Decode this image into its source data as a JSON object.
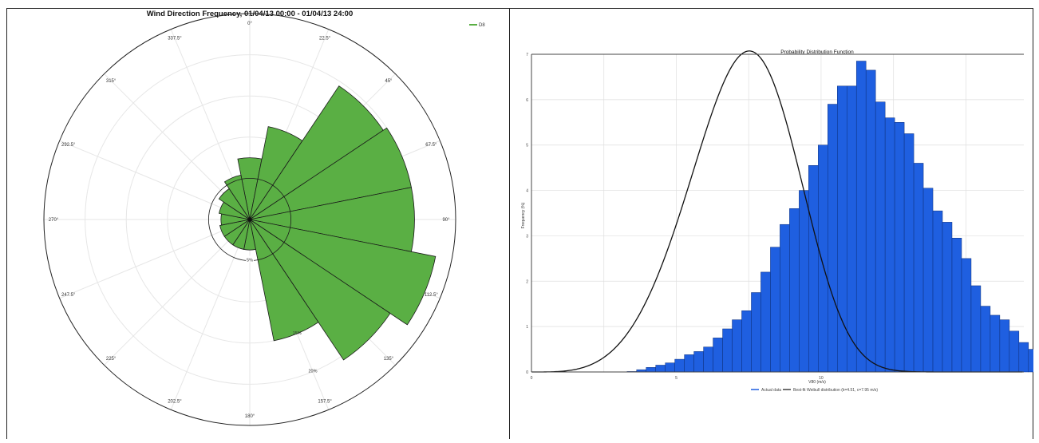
{
  "chart_data": [
    {
      "type": "polar-bar",
      "title": "Wind Direction Frequency, 01/04/13 00:00 - 01/04/13 24:00",
      "legend": [
        {
          "name": "D8",
          "color": "#5aaf44"
        }
      ],
      "legend_placement": "top-right",
      "angle_labels": [
        "0°",
        "22.5°",
        "45°",
        "67.5°",
        "90°",
        "112.5°",
        "135°",
        "157.5°",
        "180°",
        "202.5°",
        "225°",
        "247.5°",
        "270°",
        "292.5°",
        "315°",
        "337.5°"
      ],
      "ring_labels": [
        {
          "direction_deg": 180,
          "text": "5%"
        },
        {
          "direction_deg": 157.5,
          "text": "15%"
        },
        {
          "direction_deg": 157.5,
          "text": "20%"
        }
      ],
      "rmax": 25,
      "sectors": [
        {
          "direction_deg": 0,
          "value": 7.5
        },
        {
          "direction_deg": 22.5,
          "value": 11.5
        },
        {
          "direction_deg": 45,
          "value": 19.5
        },
        {
          "direction_deg": 67.5,
          "value": 20
        },
        {
          "direction_deg": 90,
          "value": 20
        },
        {
          "direction_deg": 112.5,
          "value": 23
        },
        {
          "direction_deg": 135,
          "value": 20.5
        },
        {
          "direction_deg": 157.5,
          "value": 15
        },
        {
          "direction_deg": 180,
          "value": 3.7
        },
        {
          "direction_deg": 202.5,
          "value": 3.7
        },
        {
          "direction_deg": 225,
          "value": 3.7
        },
        {
          "direction_deg": 247.5,
          "value": 3.7
        },
        {
          "direction_deg": 270,
          "value": 3.5
        },
        {
          "direction_deg": 292.5,
          "value": 3.8
        },
        {
          "direction_deg": 315,
          "value": 4.5
        },
        {
          "direction_deg": 337.5,
          "value": 5.5
        }
      ],
      "colors": {
        "fill": "#5aaf44",
        "stroke": "#1a1a1a",
        "grid": "#e6e6e6"
      }
    },
    {
      "type": "histogram",
      "title": "Probability Distribution Function",
      "xlabel": "V80 (m/s)",
      "ylabel": "Frequency (%)",
      "xlim": [
        0,
        17
      ],
      "ylim": [
        0,
        7
      ],
      "x_ticks": [
        "0",
        "5",
        "10"
      ],
      "x_tick_values": [
        0,
        5,
        10
      ],
      "y_ticks": [
        "0",
        "1",
        "2",
        "3",
        "4",
        "5",
        "6",
        "7"
      ],
      "bin_start": 0,
      "bin_width": 0.33,
      "values": [
        0.0,
        0.0,
        0.0,
        0.0,
        0.0,
        0.0,
        0.0,
        0.0,
        0.0,
        0.0,
        0.01,
        0.05,
        0.1,
        0.15,
        0.2,
        0.28,
        0.38,
        0.45,
        0.55,
        0.75,
        0.95,
        1.15,
        1.35,
        1.75,
        2.2,
        2.75,
        3.25,
        3.6,
        4.0,
        4.55,
        5.0,
        5.9,
        6.3,
        6.3,
        6.85,
        6.65,
        5.95,
        5.6,
        5.5,
        5.25,
        4.6,
        4.05,
        3.55,
        3.3,
        2.95,
        2.5,
        1.9,
        1.45,
        1.25,
        1.15,
        0.9,
        0.65,
        0.5,
        0.35,
        0.3,
        0.2,
        0.15,
        0.1,
        0.08,
        0.05,
        0.04,
        0.02,
        0.01,
        0.0
      ],
      "series": [
        {
          "name": "Actual data",
          "color": "#1f5fe0"
        },
        {
          "name": "Best-fit Weibull distribution (k=4.51, c=7.95 m/s)",
          "color": "#111111",
          "k": 4.51,
          "c": 7.95
        }
      ],
      "legend_placement": "bottom-center",
      "grid": true
    }
  ]
}
